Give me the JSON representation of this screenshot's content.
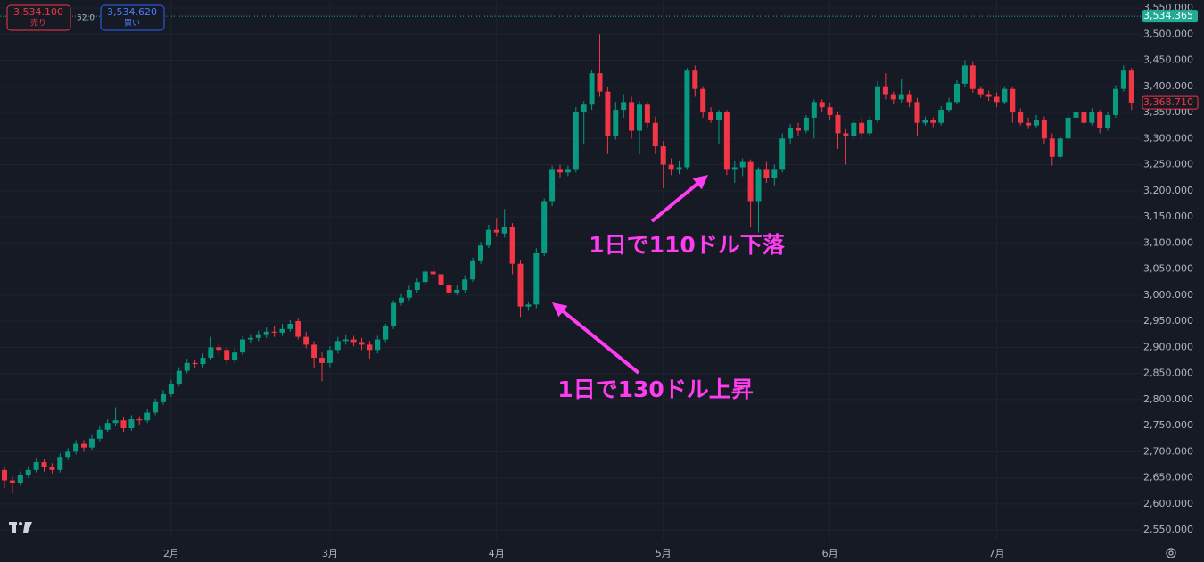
{
  "order_panel": {
    "sell_price": "3,534.100",
    "sell_label": "売り",
    "spread": "52.0",
    "buy_price": "3,534.620",
    "buy_label": "買い"
  },
  "chart_data": {
    "type": "candlestick",
    "up_color": "#089981",
    "down_color": "#f23645",
    "categories": [
      null,
      null,
      null,
      null,
      null,
      null,
      null,
      null,
      null,
      null,
      null,
      null,
      null,
      null,
      null,
      null,
      null,
      null,
      null,
      null,
      null,
      "2月",
      null,
      null,
      null,
      null,
      null,
      null,
      null,
      null,
      null,
      null,
      null,
      null,
      null,
      null,
      null,
      null,
      null,
      null,
      null,
      "3月",
      null,
      null,
      null,
      null,
      null,
      null,
      null,
      null,
      null,
      null,
      null,
      null,
      null,
      null,
      null,
      null,
      null,
      null,
      null,
      null,
      "4月",
      null,
      null,
      null,
      null,
      null,
      null,
      null,
      null,
      null,
      null,
      null,
      null,
      null,
      null,
      null,
      null,
      null,
      null,
      null,
      null,
      "5月",
      null,
      null,
      null,
      null,
      null,
      null,
      null,
      null,
      null,
      null,
      null,
      null,
      null,
      null,
      null,
      null,
      null,
      null,
      null,
      null,
      "6月",
      null,
      null,
      null,
      null,
      null,
      null,
      null,
      null,
      null,
      null,
      null,
      null,
      null,
      null,
      null,
      null,
      null,
      null,
      null,
      null,
      "7月",
      null,
      null,
      null,
      null,
      null,
      null,
      null,
      null,
      null,
      null,
      null,
      null,
      null,
      null,
      null,
      null,
      null
    ],
    "ohlc": [
      [
        2665,
        2672,
        2630,
        2645
      ],
      [
        2645,
        2652,
        2620,
        2640
      ],
      [
        2640,
        2662,
        2635,
        2655
      ],
      [
        2655,
        2672,
        2650,
        2665
      ],
      [
        2665,
        2688,
        2660,
        2680
      ],
      [
        2680,
        2686,
        2662,
        2670
      ],
      [
        2670,
        2678,
        2658,
        2665
      ],
      [
        2665,
        2697,
        2660,
        2690
      ],
      [
        2690,
        2707,
        2684,
        2700
      ],
      [
        2700,
        2722,
        2695,
        2715
      ],
      [
        2715,
        2722,
        2700,
        2708
      ],
      [
        2708,
        2732,
        2702,
        2725
      ],
      [
        2725,
        2750,
        2720,
        2742
      ],
      [
        2742,
        2762,
        2738,
        2755
      ],
      [
        2755,
        2785,
        2750,
        2760
      ],
      [
        2760,
        2766,
        2738,
        2745
      ],
      [
        2745,
        2770,
        2740,
        2762
      ],
      [
        2762,
        2768,
        2752,
        2760
      ],
      [
        2760,
        2782,
        2755,
        2775
      ],
      [
        2775,
        2802,
        2770,
        2795
      ],
      [
        2795,
        2818,
        2790,
        2810
      ],
      [
        2810,
        2838,
        2805,
        2830
      ],
      [
        2830,
        2862,
        2825,
        2855
      ],
      [
        2855,
        2878,
        2850,
        2870
      ],
      [
        2870,
        2876,
        2860,
        2868
      ],
      [
        2868,
        2888,
        2862,
        2880
      ],
      [
        2880,
        2920,
        2875,
        2900
      ],
      [
        2900,
        2906,
        2885,
        2895
      ],
      [
        2895,
        2900,
        2868,
        2875
      ],
      [
        2875,
        2898,
        2870,
        2890
      ],
      [
        2890,
        2922,
        2885,
        2915
      ],
      [
        2915,
        2925,
        2908,
        2918
      ],
      [
        2918,
        2932,
        2912,
        2925
      ],
      [
        2925,
        2938,
        2918,
        2930
      ],
      [
        2930,
        2940,
        2920,
        2928
      ],
      [
        2928,
        2945,
        2922,
        2935
      ],
      [
        2935,
        2952,
        2930,
        2945
      ],
      [
        2950,
        2955,
        2915,
        2920
      ],
      [
        2920,
        2930,
        2898,
        2905
      ],
      [
        2905,
        2912,
        2860,
        2880
      ],
      [
        2880,
        2890,
        2835,
        2870
      ],
      [
        2870,
        2902,
        2862,
        2895
      ],
      [
        2895,
        2920,
        2888,
        2912
      ],
      [
        2912,
        2925,
        2905,
        2915
      ],
      [
        2915,
        2922,
        2902,
        2910
      ],
      [
        2910,
        2918,
        2895,
        2905
      ],
      [
        2905,
        2912,
        2878,
        2895
      ],
      [
        2895,
        2922,
        2888,
        2915
      ],
      [
        2915,
        2945,
        2910,
        2940
      ],
      [
        2940,
        2990,
        2935,
        2985
      ],
      [
        2985,
        3002,
        2980,
        2995
      ],
      [
        2995,
        3018,
        2990,
        3010
      ],
      [
        3010,
        3032,
        3005,
        3025
      ],
      [
        3025,
        3050,
        3020,
        3045
      ],
      [
        3045,
        3058,
        3032,
        3040
      ],
      [
        3040,
        3045,
        3012,
        3020
      ],
      [
        3020,
        3028,
        2998,
        3005
      ],
      [
        3005,
        3018,
        3000,
        3010
      ],
      [
        3010,
        3038,
        3005,
        3030
      ],
      [
        3030,
        3072,
        3025,
        3065
      ],
      [
        3065,
        3102,
        3060,
        3095
      ],
      [
        3095,
        3135,
        3090,
        3125
      ],
      [
        3125,
        3148,
        3112,
        3120
      ],
      [
        3118,
        3165,
        3110,
        3130
      ],
      [
        3130,
        3138,
        3040,
        3060
      ],
      [
        3060,
        3068,
        2958,
        2978
      ],
      [
        2978,
        2988,
        2970,
        2982
      ],
      [
        2982,
        3090,
        2975,
        3080
      ],
      [
        3080,
        3185,
        3075,
        3180
      ],
      [
        3180,
        3248,
        3170,
        3240
      ],
      [
        3240,
        3250,
        3225,
        3235
      ],
      [
        3235,
        3248,
        3228,
        3240
      ],
      [
        3240,
        3360,
        3235,
        3350
      ],
      [
        3350,
        3372,
        3290,
        3365
      ],
      [
        3365,
        3432,
        3355,
        3425
      ],
      [
        3425,
        3500,
        3380,
        3390
      ],
      [
        3390,
        3398,
        3270,
        3305
      ],
      [
        3305,
        3370,
        3298,
        3355
      ],
      [
        3355,
        3385,
        3340,
        3370
      ],
      [
        3370,
        3380,
        3300,
        3315
      ],
      [
        3315,
        3372,
        3270,
        3365
      ],
      [
        3365,
        3370,
        3320,
        3330
      ],
      [
        3330,
        3342,
        3270,
        3285
      ],
      [
        3285,
        3295,
        3205,
        3250
      ],
      [
        3250,
        3262,
        3230,
        3240
      ],
      [
        3240,
        3258,
        3232,
        3245
      ],
      [
        3245,
        3435,
        3240,
        3430
      ],
      [
        3430,
        3440,
        3380,
        3395
      ],
      [
        3395,
        3400,
        3340,
        3350
      ],
      [
        3350,
        3360,
        3330,
        3335
      ],
      [
        3335,
        3355,
        3290,
        3350
      ],
      [
        3350,
        3355,
        3230,
        3240
      ],
      [
        3240,
        3258,
        3215,
        3245
      ],
      [
        3245,
        3262,
        3228,
        3255
      ],
      [
        3255,
        3260,
        3130,
        3180
      ],
      [
        3180,
        3245,
        3120,
        3240
      ],
      [
        3240,
        3255,
        3215,
        3225
      ],
      [
        3225,
        3250,
        3210,
        3240
      ],
      [
        3240,
        3310,
        3235,
        3300
      ],
      [
        3300,
        3328,
        3290,
        3320
      ],
      [
        3320,
        3330,
        3305,
        3315
      ],
      [
        3315,
        3345,
        3310,
        3340
      ],
      [
        3340,
        3375,
        3300,
        3370
      ],
      [
        3370,
        3375,
        3350,
        3360
      ],
      [
        3360,
        3368,
        3335,
        3345
      ],
      [
        3345,
        3352,
        3280,
        3310
      ],
      [
        3310,
        3318,
        3250,
        3305
      ],
      [
        3305,
        3338,
        3298,
        3330
      ],
      [
        3330,
        3340,
        3300,
        3310
      ],
      [
        3310,
        3342,
        3305,
        3335
      ],
      [
        3335,
        3410,
        3330,
        3400
      ],
      [
        3400,
        3425,
        3375,
        3385
      ],
      [
        3385,
        3390,
        3365,
        3375
      ],
      [
        3375,
        3415,
        3368,
        3385
      ],
      [
        3385,
        3392,
        3360,
        3370
      ],
      [
        3370,
        3378,
        3305,
        3330
      ],
      [
        3330,
        3342,
        3325,
        3335
      ],
      [
        3335,
        3340,
        3322,
        3330
      ],
      [
        3330,
        3362,
        3325,
        3355
      ],
      [
        3355,
        3378,
        3350,
        3370
      ],
      [
        3370,
        3412,
        3365,
        3405
      ],
      [
        3405,
        3450,
        3400,
        3440
      ],
      [
        3440,
        3448,
        3388,
        3395
      ],
      [
        3395,
        3400,
        3378,
        3385
      ],
      [
        3385,
        3392,
        3372,
        3380
      ],
      [
        3380,
        3388,
        3360,
        3370
      ],
      [
        3370,
        3400,
        3365,
        3395
      ],
      [
        3395,
        3398,
        3330,
        3350
      ],
      [
        3350,
        3358,
        3325,
        3330
      ],
      [
        3330,
        3340,
        3318,
        3325
      ],
      [
        3325,
        3345,
        3320,
        3335
      ],
      [
        3335,
        3342,
        3290,
        3300
      ],
      [
        3300,
        3310,
        3248,
        3265
      ],
      [
        3265,
        3308,
        3258,
        3300
      ],
      [
        3300,
        3352,
        3295,
        3340
      ],
      [
        3340,
        3358,
        3335,
        3350
      ],
      [
        3350,
        3355,
        3322,
        3330
      ],
      [
        3330,
        3358,
        3325,
        3350
      ],
      [
        3350,
        3355,
        3310,
        3320
      ],
      [
        3320,
        3352,
        3315,
        3345
      ],
      [
        3345,
        3402,
        3340,
        3395
      ],
      [
        3395,
        3440,
        3390,
        3430
      ],
      [
        3430,
        3435,
        3355,
        3369
      ]
    ],
    "ylim": [
      2531.4,
      3565.4
    ],
    "yticks": [
      {
        "value": 2550,
        "label": "2,550.000"
      },
      {
        "value": 2600,
        "label": "2,600.000"
      },
      {
        "value": 2650,
        "label": "2,650.000"
      },
      {
        "value": 2700,
        "label": "2,700.000"
      },
      {
        "value": 2750,
        "label": "2,750.000"
      },
      {
        "value": 2800,
        "label": "2,800.000"
      },
      {
        "value": 2850,
        "label": "2,850.000"
      },
      {
        "value": 2900,
        "label": "2,900.000"
      },
      {
        "value": 2950,
        "label": "2,950.000"
      },
      {
        "value": 3000,
        "label": "3,000.000"
      },
      {
        "value": 3050,
        "label": "3,050.000"
      },
      {
        "value": 3100,
        "label": "3,100.000"
      },
      {
        "value": 3150,
        "label": "3,150.000"
      },
      {
        "value": 3200,
        "label": "3,200.000"
      },
      {
        "value": 3250,
        "label": "3,250.000"
      },
      {
        "value": 3300,
        "label": "3,300.000"
      },
      {
        "value": 3350,
        "label": "3,350.000"
      },
      {
        "value": 3400,
        "label": "3,400.000"
      },
      {
        "value": 3450,
        "label": "3,450.000"
      },
      {
        "value": 3500,
        "label": "3,500.000"
      },
      {
        "value": 3550,
        "label": "3,550.000"
      }
    ],
    "grid": true,
    "current_price": {
      "value": 3534.365,
      "label": "3,534.365",
      "color": "#22ab94"
    },
    "last_price": {
      "value": 3368.71,
      "label": "3,368.710",
      "color": "#f23645"
    },
    "annotation_color": "#ff3df0",
    "annotations": [
      "1日で130ドル上昇",
      "1日で110ドル下落"
    ]
  }
}
